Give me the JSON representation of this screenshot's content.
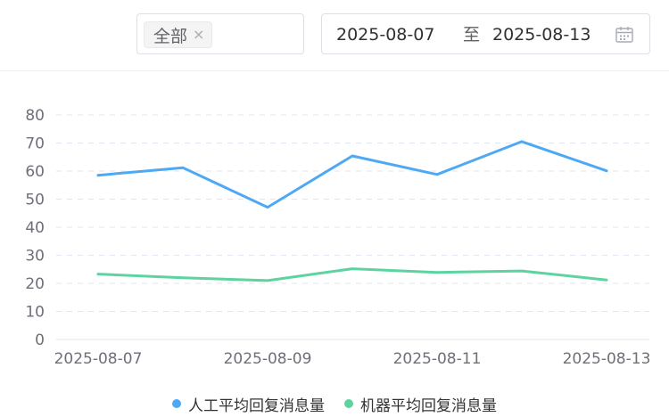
{
  "filters": {
    "tag_label": "全部",
    "tag_close": "×"
  },
  "date_range": {
    "start": "2025-08-07",
    "separator": "至",
    "end": "2025-08-13",
    "icon": "calendar-icon"
  },
  "colors": {
    "series_human": "#4ea9f5",
    "series_robot": "#5dd3a0",
    "grid": "#e0e6f1",
    "axis_text": "#6e7079"
  },
  "chart_data": {
    "type": "line",
    "title": "",
    "xlabel": "",
    "ylabel": "",
    "x": [
      "2025-08-07",
      "2025-08-08",
      "2025-08-09",
      "2025-08-10",
      "2025-08-11",
      "2025-08-12",
      "2025-08-13"
    ],
    "x_tick_labels": [
      "2025-08-07",
      "2025-08-09",
      "2025-08-11",
      "2025-08-13"
    ],
    "ylim": [
      0,
      80
    ],
    "y_ticks": [
      0,
      10,
      20,
      30,
      40,
      50,
      60,
      70,
      80
    ],
    "grid": true,
    "legend_position": "bottom-center",
    "series": [
      {
        "name": "人工平均回复消息量",
        "values": [
          58.5,
          61.2,
          47.1,
          65.4,
          58.8,
          70.5,
          60.1
        ]
      },
      {
        "name": "机器平均回复消息量",
        "values": [
          23.3,
          22.0,
          21.0,
          25.2,
          23.9,
          24.4,
          21.2
        ]
      }
    ]
  }
}
